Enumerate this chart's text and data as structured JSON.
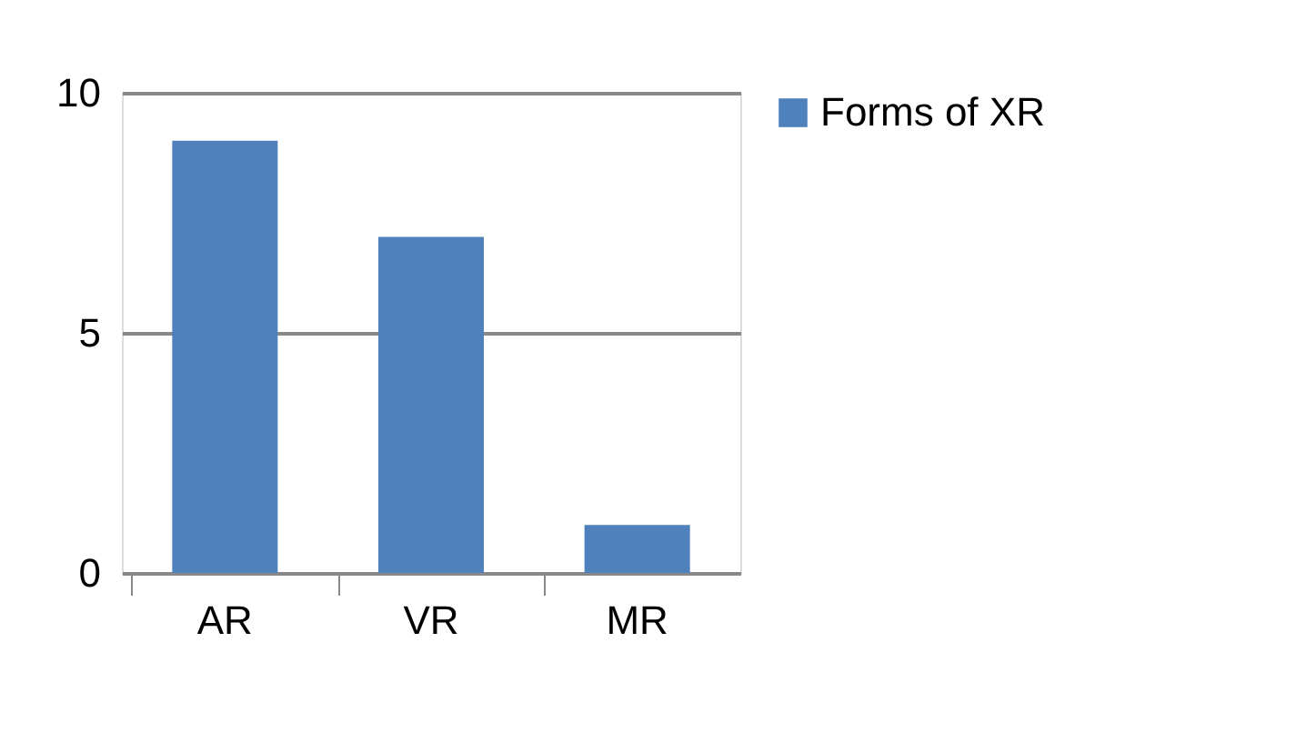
{
  "chart_data": {
    "type": "bar",
    "categories": [
      "AR",
      "VR",
      "MR"
    ],
    "series": [
      {
        "name": "Forms of XR",
        "color": "#4f81bd",
        "values": [
          9,
          7,
          1
        ]
      }
    ],
    "ylim": [
      0,
      10
    ],
    "yticks": [
      0,
      5,
      10
    ],
    "grid": "y",
    "legend": "right"
  }
}
